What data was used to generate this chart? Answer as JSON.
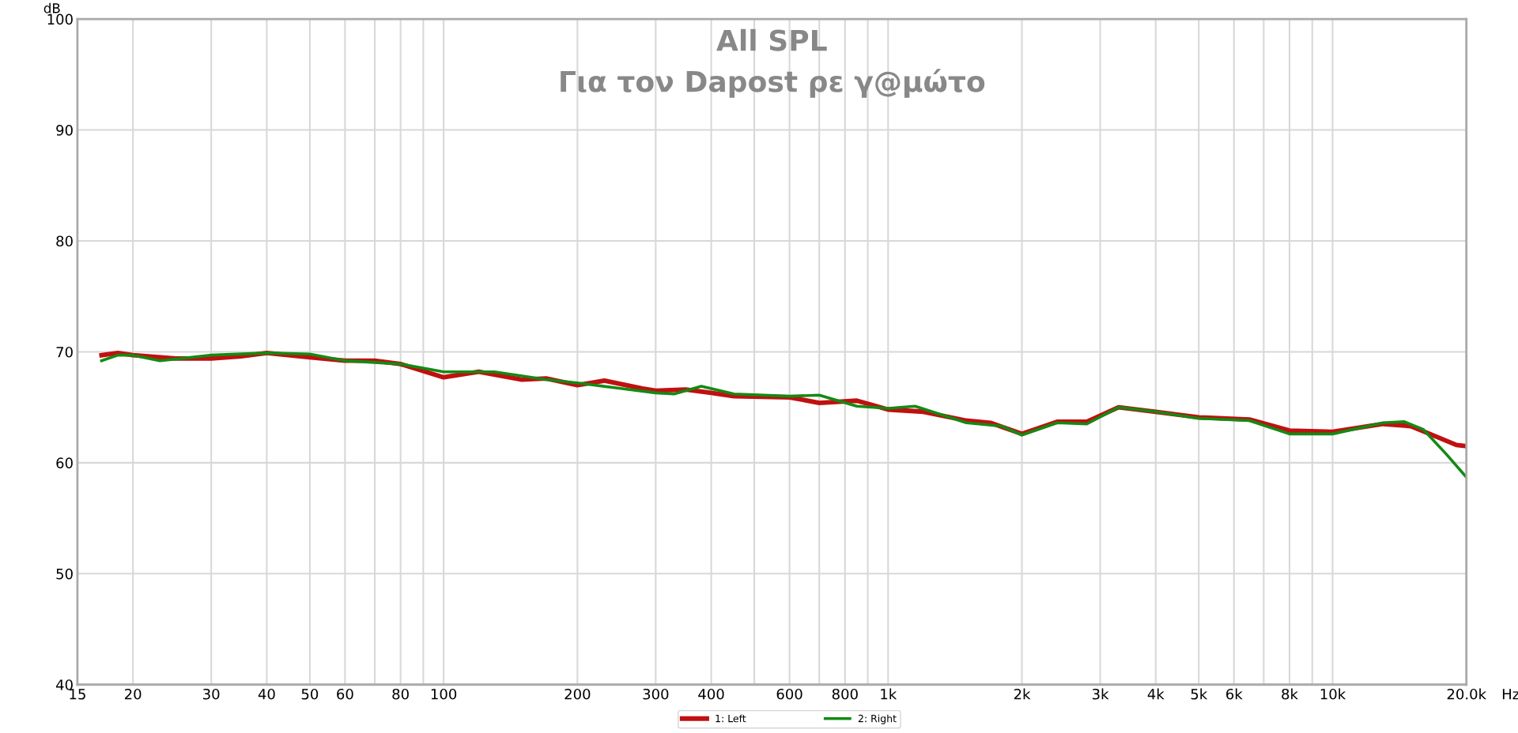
{
  "chart_data": {
    "type": "line",
    "title": "All SPL",
    "subtitle": "Για τον Dapost ρε γ@μώτο",
    "xlabel": "Hz",
    "ylabel": "dB",
    "log": "x",
    "grid": true,
    "legend": "bottom",
    "xlim": [
      15,
      20000
    ],
    "ylim": [
      40,
      100
    ],
    "yticks": [
      40,
      50,
      60,
      70,
      80,
      90,
      100
    ],
    "xticks": [
      15,
      20,
      30,
      40,
      50,
      60,
      {
        "value": 70,
        "label": null
      },
      80,
      {
        "value": 90,
        "label": null
      },
      100,
      200,
      300,
      400,
      {
        "value": 500,
        "label": null
      },
      600,
      {
        "value": 700,
        "label": null
      },
      800,
      {
        "value": 900,
        "label": null
      },
      {
        "value": 1000,
        "label": "1k"
      },
      {
        "value": 2000,
        "label": "2k"
      },
      {
        "value": 3000,
        "label": "3k"
      },
      {
        "value": 4000,
        "label": "4k"
      },
      {
        "value": 5000,
        "label": "5k"
      },
      {
        "value": 6000,
        "label": "6k"
      },
      {
        "value": 7000,
        "label": null
      },
      {
        "value": 8000,
        "label": "8k"
      },
      {
        "value": 9000,
        "label": null
      },
      {
        "value": 10000,
        "label": "10k"
      },
      {
        "value": 20000,
        "label": "20.0k"
      }
    ],
    "series": [
      {
        "name": "1: Left",
        "color": "#c01010",
        "x": [
          17,
          18.5,
          20,
          25,
          30,
          35,
          40,
          50,
          60,
          70,
          80,
          100,
          120,
          150,
          170,
          200,
          230,
          280,
          300,
          350,
          400,
          450,
          600,
          700,
          850,
          1000,
          1200,
          1500,
          1700,
          2000,
          2400,
          2800,
          3300,
          4000,
          5000,
          6500,
          8000,
          10000,
          13000,
          15000,
          17000,
          19000,
          20000
        ],
        "values": [
          69.7,
          69.9,
          69.7,
          69.4,
          69.4,
          69.6,
          69.9,
          69.5,
          69.2,
          69.2,
          68.9,
          67.7,
          68.2,
          67.5,
          67.6,
          67.0,
          67.4,
          66.7,
          66.5,
          66.6,
          66.3,
          66.0,
          65.9,
          65.4,
          65.6,
          64.8,
          64.6,
          63.8,
          63.6,
          62.6,
          63.7,
          63.7,
          65.0,
          64.6,
          64.1,
          63.9,
          62.9,
          62.8,
          63.5,
          63.3,
          62.4,
          61.6,
          61.5
        ]
      },
      {
        "name": "2: Right",
        "color": "#138a13",
        "x": [
          17,
          18.5,
          20,
          23,
          30,
          40,
          50,
          60,
          80,
          100,
          130,
          170,
          200,
          250,
          300,
          330,
          380,
          450,
          600,
          700,
          850,
          1000,
          1150,
          1500,
          1800,
          2000,
          2400,
          2800,
          3300,
          4000,
          5000,
          6500,
          8000,
          10000,
          13000,
          14500,
          16000,
          18000,
          20000
        ],
        "values": [
          69.2,
          69.7,
          69.7,
          69.2,
          69.7,
          69.9,
          69.8,
          69.2,
          68.9,
          68.2,
          68.2,
          67.5,
          67.2,
          66.7,
          66.3,
          66.2,
          66.9,
          66.2,
          66.0,
          66.1,
          65.1,
          64.9,
          65.1,
          63.6,
          63.3,
          62.5,
          63.6,
          63.5,
          65.0,
          64.6,
          64.0,
          63.8,
          62.6,
          62.6,
          63.6,
          63.7,
          63.0,
          60.8,
          58.7
        ]
      }
    ]
  }
}
